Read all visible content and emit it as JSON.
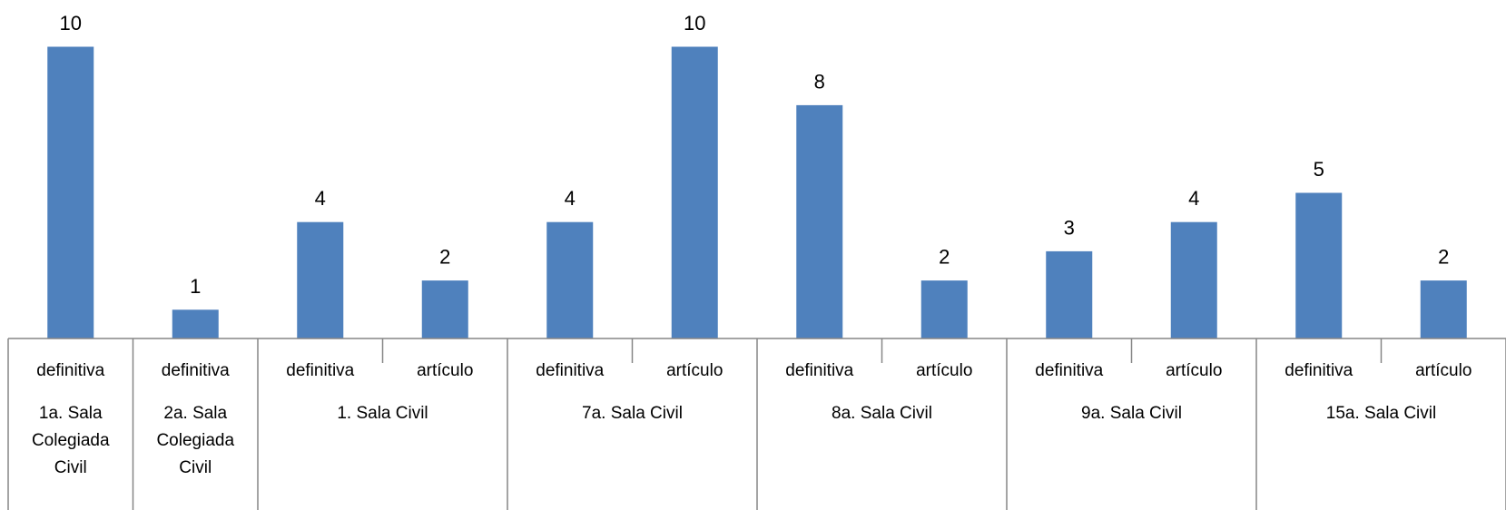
{
  "chart_data": {
    "type": "bar",
    "colors": {
      "bar": "#4f81bd",
      "axis": "#868686"
    },
    "grid": false,
    "legend": "none",
    "ylim": [
      0,
      10
    ],
    "groups": [
      {
        "label": [
          "1a. Sala",
          "Colegiada",
          "Civil"
        ],
        "bars": [
          {
            "category": "definitiva",
            "value": 10
          }
        ]
      },
      {
        "label": [
          "2a. Sala",
          "Colegiada",
          "Civil"
        ],
        "bars": [
          {
            "category": "definitiva",
            "value": 1
          }
        ]
      },
      {
        "label": [
          "1. Sala Civil"
        ],
        "bars": [
          {
            "category": "definitiva",
            "value": 4
          },
          {
            "category": "artículo",
            "value": 2
          }
        ]
      },
      {
        "label": [
          "7a. Sala Civil"
        ],
        "bars": [
          {
            "category": "definitiva",
            "value": 4
          },
          {
            "category": "artículo",
            "value": 10
          }
        ]
      },
      {
        "label": [
          "8a. Sala Civil"
        ],
        "bars": [
          {
            "category": "definitiva",
            "value": 8
          },
          {
            "category": "artículo",
            "value": 2
          }
        ]
      },
      {
        "label": [
          "9a. Sala Civil"
        ],
        "bars": [
          {
            "category": "definitiva",
            "value": 3
          },
          {
            "category": "artículo",
            "value": 4
          }
        ]
      },
      {
        "label": [
          "15a. Sala Civil"
        ],
        "bars": [
          {
            "category": "definitiva",
            "value": 5
          },
          {
            "category": "artículo",
            "value": 2
          }
        ]
      }
    ]
  }
}
